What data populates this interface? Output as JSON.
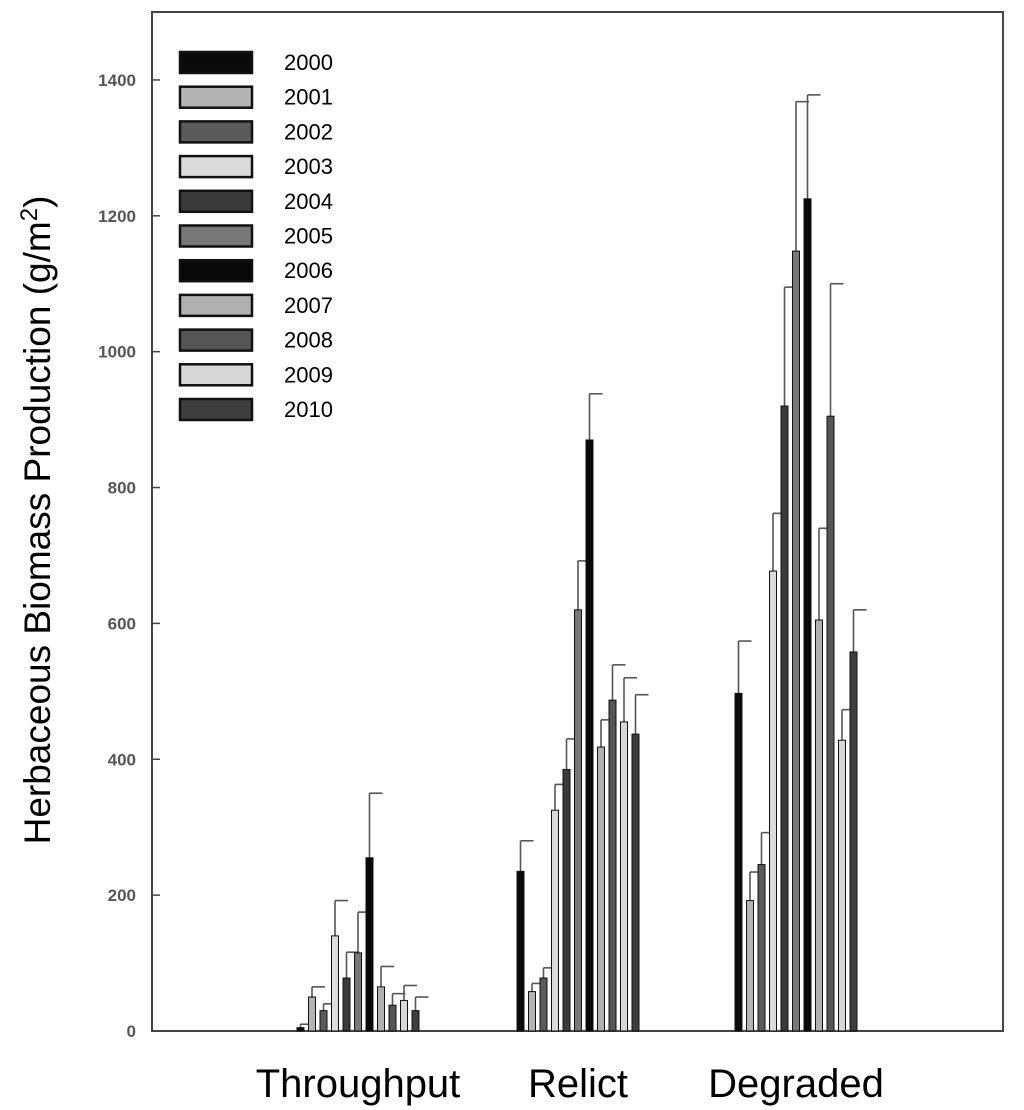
{
  "chart_data": {
    "type": "bar",
    "ylabel": "Herbaceous Biomass Production (g/m²)",
    "ylabel_base": "Herbaceous Biomass Production (g/m",
    "ylabel_sup": "2",
    "ylabel_end": ")",
    "xlabel": "",
    "ylim": [
      0,
      1500
    ],
    "yticks": [
      0,
      200,
      400,
      600,
      800,
      1000,
      1200,
      1400
    ],
    "categories": [
      "Throughput",
      "Relict",
      "Degraded"
    ],
    "legend_position": "top-left",
    "series": [
      {
        "name": "2000",
        "color": "#0a0a0a",
        "values": [
          5,
          235,
          497
        ],
        "errors": [
          5,
          45,
          77
        ]
      },
      {
        "name": "2001",
        "color": "#b4b4b4",
        "values": [
          50,
          58,
          192
        ],
        "errors": [
          15,
          12,
          42
        ]
      },
      {
        "name": "2002",
        "color": "#5a5a5a",
        "values": [
          30,
          78,
          245
        ],
        "errors": [
          10,
          15,
          47
        ]
      },
      {
        "name": "2003",
        "color": "#dcdcdc",
        "values": [
          140,
          325,
          677
        ],
        "errors": [
          52,
          38,
          85
        ]
      },
      {
        "name": "2004",
        "color": "#3a3a3a",
        "values": [
          78,
          385,
          920
        ],
        "errors": [
          38,
          45,
          175
        ]
      },
      {
        "name": "2005",
        "color": "#787878",
        "values": [
          115,
          620,
          1148
        ],
        "errors": [
          60,
          72,
          220
        ]
      },
      {
        "name": "2006",
        "color": "#080808",
        "values": [
          255,
          870,
          1225
        ],
        "errors": [
          95,
          68,
          153
        ]
      },
      {
        "name": "2007",
        "color": "#b0b0b0",
        "values": [
          65,
          418,
          605
        ],
        "errors": [
          30,
          40,
          135
        ]
      },
      {
        "name": "2008",
        "color": "#555555",
        "values": [
          38,
          487,
          905
        ],
        "errors": [
          17,
          52,
          195
        ]
      },
      {
        "name": "2009",
        "color": "#d8d8d8",
        "values": [
          45,
          455,
          428
        ],
        "errors": [
          22,
          65,
          45
        ]
      },
      {
        "name": "2010",
        "color": "#3e3e3e",
        "values": [
          30,
          437,
          558
        ],
        "errors": [
          20,
          58,
          62
        ]
      }
    ]
  }
}
